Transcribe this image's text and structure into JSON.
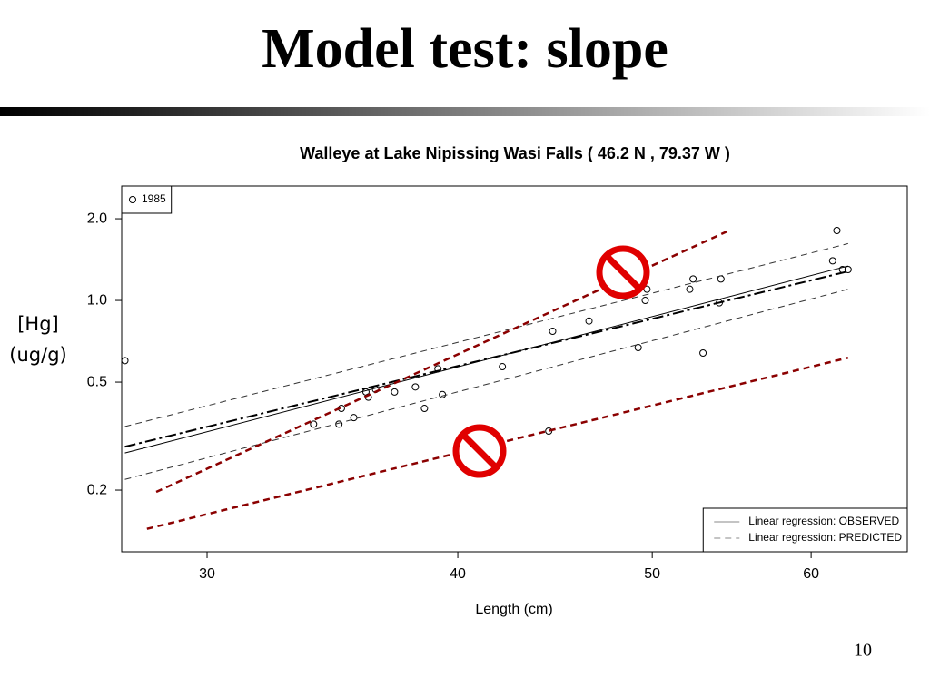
{
  "slide": {
    "title": "Model test: slope",
    "page_number": "10"
  },
  "chart_data": {
    "type": "scatter",
    "title": "Walleye at Lake Nipissing Wasi Falls ( 46.2 N , 79.37 W )",
    "xlabel": "Length (cm)",
    "ylabel": [
      "[Hg]",
      "(ug/g)"
    ],
    "xscale": "log",
    "yscale": "log",
    "xlim": [
      27.2,
      67.0
    ],
    "ylim": [
      0.1185,
      2.64
    ],
    "xticks": [
      30,
      40,
      50,
      60
    ],
    "yticks": [
      0.2,
      0.5,
      {
        "value": 1,
        "label": "1.0"
      },
      {
        "value": 2,
        "label": "2.0"
      }
    ],
    "series": [
      {
        "name": "1985",
        "type": "scatter",
        "color": "#000000",
        "legend": "upper left",
        "x": [
          27.3,
          33.9,
          34.9,
          35.0,
          35.5,
          36.0,
          36.1,
          36.4,
          37.2,
          38.1,
          38.5,
          39.1,
          39.3,
          42.1,
          44.4,
          44.6,
          46.5,
          49.2,
          49.6,
          49.7,
          52.2,
          52.4,
          53.0,
          54.0,
          54.1,
          61.5,
          61.8,
          62.2,
          62.6
        ],
        "values": [
          0.6,
          0.35,
          0.35,
          0.4,
          0.37,
          0.46,
          0.44,
          0.47,
          0.46,
          0.48,
          0.4,
          0.56,
          0.45,
          0.57,
          0.33,
          0.77,
          0.84,
          0.67,
          1.0,
          1.1,
          1.1,
          1.2,
          0.64,
          0.98,
          1.2,
          1.4,
          1.81,
          1.3,
          1.3
        ]
      },
      {
        "name": "Linear regression: OBSERVED",
        "type": "line",
        "style": "solid",
        "color": "#000000",
        "legend": "lower right",
        "x": [
          27.3,
          62.6
        ],
        "values": [
          0.274,
          1.34
        ]
      },
      {
        "name": "Linear regression: PREDICTED",
        "type": "line",
        "style": "dashed",
        "color": "#000000",
        "legend": "lower right",
        "x": [
          27.3,
          62.6
        ],
        "values": [
          0.289,
          1.28
        ]
      },
      {
        "type": "line",
        "style": "dashed",
        "color": "#333333",
        "x": [
          27.3,
          62.6
        ],
        "values": [
          0.343,
          1.62
        ]
      },
      {
        "type": "line",
        "style": "dashed",
        "color": "#333333",
        "x": [
          27.3,
          62.6
        ],
        "values": [
          0.219,
          1.1
        ]
      },
      {
        "type": "line",
        "style": "dashed",
        "color": "#8b0000",
        "x": [
          28.3,
          54.7
        ],
        "values": [
          0.197,
          1.82
        ]
      },
      {
        "type": "line",
        "style": "dashed",
        "color": "#8b0000",
        "x": [
          28.0,
          62.6
        ],
        "values": [
          0.144,
          0.615
        ]
      }
    ]
  }
}
